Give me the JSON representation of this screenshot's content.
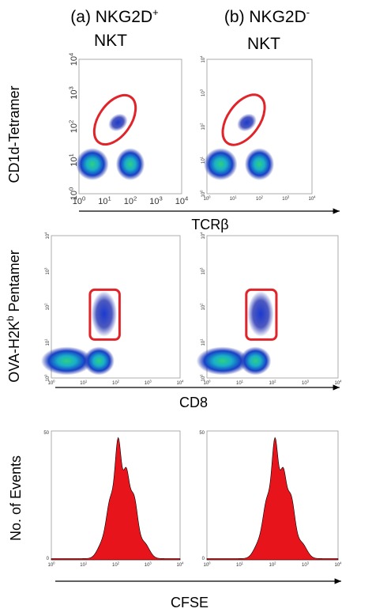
{
  "columns": [
    {
      "label": "(a) NKG2D",
      "superscript": "+",
      "line2": "NKT"
    },
    {
      "label": "(b) NKG2D",
      "superscript": "-",
      "line2": "NKT"
    }
  ],
  "rows": [
    {
      "y_label": "CD1d-Tetramer",
      "x_label": "TCRβ"
    },
    {
      "y_label": {
        "text": "OVA-H2K",
        "superscript": "b",
        "suffix": " Pentamer"
      },
      "x_label": "CD8"
    },
    {
      "y_label": "No. of Events",
      "x_label": "CFSE"
    }
  ],
  "log_ticks": {
    "base": "10",
    "exponents": [
      "0",
      "1",
      "2",
      "3",
      "4"
    ]
  },
  "count_ticks": [
    "0",
    "50"
  ]
}
